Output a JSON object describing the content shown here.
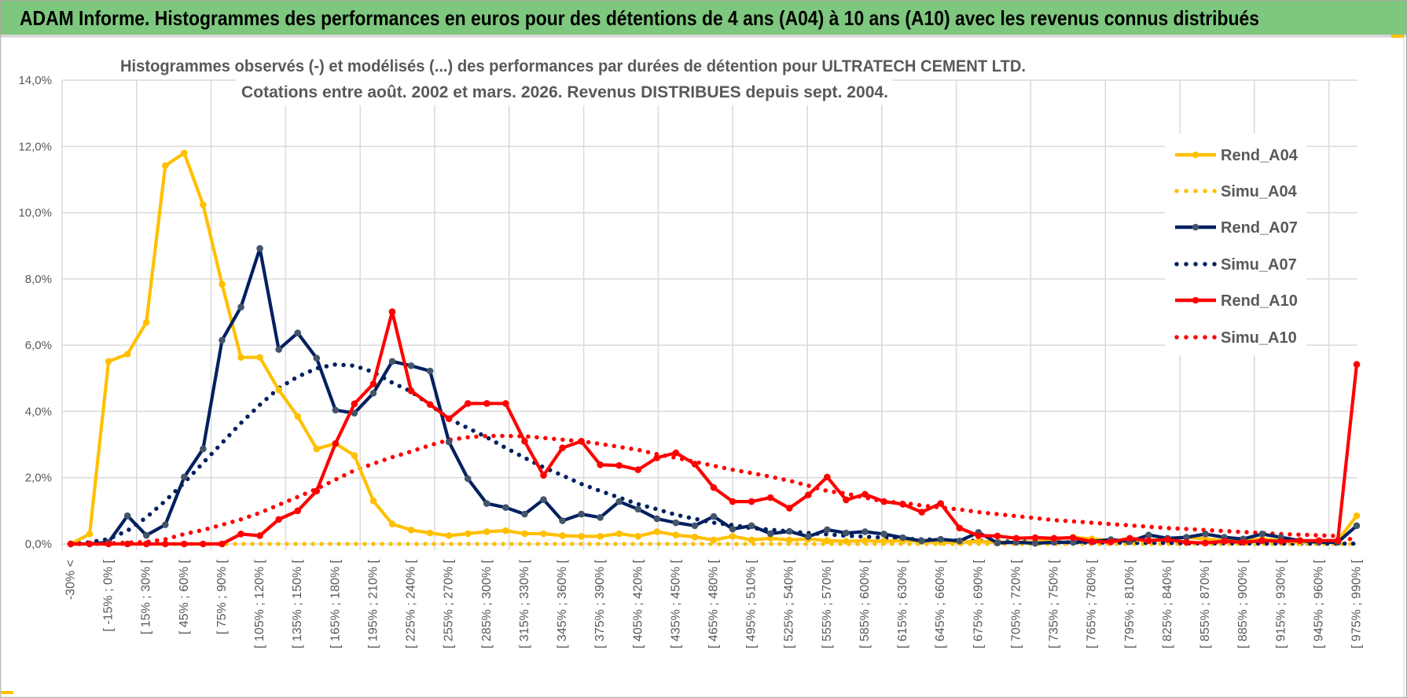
{
  "header": {
    "title": "ADAM Informe. Histogrammes des performances en euros pour des détentions de 4 ans (A04) à 10 ans (A10) avec les revenus connus distribués",
    "bar_color": "#7ec77e"
  },
  "chart_data": {
    "type": "line",
    "title_line1": "Histogrammes observés (-) et modélisés (...) des performances par durées de détention pour ULTRATECH CEMENT LTD.",
    "title_line2": "Cotations entre août. 2002 et mars. 2026. Revenus DISTRIBUES depuis sept. 2004.",
    "xlabel": "",
    "ylabel": "",
    "ylim": [
      0,
      14
    ],
    "y_ticks": [
      "0,0%",
      "2,0%",
      "4,0%",
      "6,0%",
      "8,0%",
      "10,0%",
      "12,0%",
      "14,0%"
    ],
    "grid": true,
    "legend_position": "right",
    "x_labels": [
      "-30% <",
      "[ -15% ; 0% [",
      "[ 15% ; 30% [",
      "[ 45% ; 60% [",
      "[ 75% ; 90% [",
      "[ 105% ; 120% [",
      "[ 135% ; 150% [",
      "[ 165% ; 180% [",
      "[ 195% ; 210% [",
      "[ 225% ; 240% [",
      "[ 255% ; 270% [",
      "[ 285% ; 300% [",
      "[ 315% ; 330% [",
      "[ 345% ; 360% [",
      "[ 375% ; 390% [",
      "[ 405% ; 420% [",
      "[ 435% ; 450% [",
      "[ 465% ; 480% [",
      "[ 495% ; 510% [",
      "[ 525% ; 540% [",
      "[ 555% ; 570% [",
      "[ 585% ; 600% [",
      "[ 615% ; 630% [",
      "[ 645% ; 660% [",
      "[ 675% ; 690% [",
      "[ 705% ; 720% [",
      "[ 735% ; 750% [",
      "[ 765% ; 780% [",
      "[ 795% ; 810% [",
      "[ 825% ; 840% [",
      "[ 855% ; 870% [",
      "[ 885% ; 900% [",
      "[ 915% ; 930% [",
      "[ 945% ; 960% [",
      "[ 975% ; 990% ["
    ],
    "category_count": 69,
    "label_every": 2,
    "series": [
      {
        "name": "Rend_A04",
        "style": "solid",
        "color": "#FFC000",
        "marker": "#FFC000",
        "values": [
          0,
          0.3,
          5.51,
          5.73,
          6.69,
          11.42,
          11.8,
          10.24,
          7.84,
          5.63,
          5.63,
          4.65,
          3.85,
          2.87,
          3.03,
          2.67,
          1.3,
          0.6,
          0.42,
          0.33,
          0.25,
          0.31,
          0.37,
          0.4,
          0.31,
          0.31,
          0.25,
          0.23,
          0.23,
          0.31,
          0.23,
          0.37,
          0.27,
          0.21,
          0.12,
          0.23,
          0.12,
          0.17,
          0.12,
          0.15,
          0.1,
          0.08,
          0.1,
          0.08,
          0.1,
          0.08,
          0.05,
          0.05,
          0.08,
          0.05,
          0.05,
          0.05,
          0.15,
          0.2,
          0.15,
          0.1,
          0.12,
          0.1,
          0.15,
          0.2,
          0.15,
          0.1,
          0.1,
          0.15,
          0.1,
          0.05,
          0.1,
          0.1,
          0.85
        ]
      },
      {
        "name": "Simu_A04",
        "style": "dotted",
        "color": "#FFC000",
        "values": [
          0,
          0,
          0,
          0,
          0,
          0,
          0,
          0,
          0,
          0,
          0,
          0,
          0,
          0,
          0,
          0,
          0,
          0,
          0,
          0,
          0,
          0,
          0,
          0,
          0,
          0,
          0,
          0,
          0,
          0,
          0,
          0,
          0,
          0,
          0,
          0,
          0,
          0,
          0,
          0,
          0,
          0,
          0,
          0,
          0,
          0,
          0,
          0,
          0,
          0,
          0,
          0,
          0,
          0,
          0,
          0,
          0,
          0,
          0,
          0,
          0,
          0,
          0,
          0,
          0,
          0,
          0,
          0,
          0
        ]
      },
      {
        "name": "Rend_A07",
        "style": "solid",
        "color": "#002060",
        "marker": "#44546A",
        "values": [
          0,
          0,
          0.05,
          0.85,
          0.26,
          0.58,
          2.02,
          2.87,
          6.15,
          7.15,
          8.92,
          5.87,
          6.37,
          5.61,
          4.04,
          3.95,
          4.55,
          5.51,
          5.38,
          5.22,
          3.08,
          1.97,
          1.22,
          1.1,
          0.9,
          1.34,
          0.7,
          0.9,
          0.8,
          1.28,
          1.05,
          0.76,
          0.64,
          0.55,
          0.83,
          0.45,
          0.55,
          0.31,
          0.38,
          0.22,
          0.43,
          0.33,
          0.37,
          0.3,
          0.19,
          0.09,
          0.14,
          0.09,
          0.35,
          0.03,
          0.05,
          0.02,
          0.05,
          0.05,
          0.07,
          0.13,
          0.07,
          0.27,
          0.17,
          0.2,
          0.3,
          0.2,
          0.15,
          0.3,
          0.2,
          0.1,
          0.05,
          0.05,
          0.55
        ]
      },
      {
        "name": "Simu_A07",
        "style": "dotted",
        "color": "#002060",
        "values": [
          0,
          0.05,
          0.15,
          0.4,
          0.8,
          1.3,
          1.85,
          2.45,
          3.05,
          3.65,
          4.2,
          4.7,
          5.05,
          5.3,
          5.42,
          5.38,
          5.19,
          4.87,
          4.6,
          4.2,
          3.78,
          3.5,
          3.22,
          2.9,
          2.6,
          2.31,
          2.07,
          1.81,
          1.6,
          1.4,
          1.2,
          1.05,
          0.88,
          0.76,
          0.64,
          0.57,
          0.48,
          0.43,
          0.38,
          0.33,
          0.29,
          0.25,
          0.22,
          0.19,
          0.16,
          0.14,
          0.12,
          0.1,
          0.09,
          0.08,
          0.07,
          0.06,
          0.05,
          0.05,
          0.04,
          0.04,
          0.03,
          0.03,
          0.03,
          0.02,
          0.02,
          0.02,
          0.02,
          0.01,
          0.01,
          0.01,
          0.01,
          0.01,
          0.01
        ]
      },
      {
        "name": "Rend_A10",
        "style": "solid",
        "color": "#FF0000",
        "marker": "#FF0000",
        "values": [
          0,
          0,
          0,
          0,
          0,
          0,
          0,
          0,
          0,
          0.3,
          0.25,
          0.74,
          1.0,
          1.6,
          3.03,
          4.23,
          4.83,
          7.01,
          4.62,
          4.21,
          3.78,
          4.24,
          4.24,
          4.24,
          3.1,
          2.07,
          2.9,
          3.1,
          2.39,
          2.37,
          2.24,
          2.6,
          2.75,
          2.41,
          1.7,
          1.28,
          1.28,
          1.4,
          1.08,
          1.48,
          2.02,
          1.33,
          1.5,
          1.28,
          1.2,
          0.96,
          1.22,
          0.48,
          0.25,
          0.24,
          0.17,
          0.19,
          0.17,
          0.19,
          0.07,
          0.06,
          0.17,
          0.1,
          0.13,
          0.05,
          0.03,
          0.08,
          0.05,
          0.1,
          0.08,
          0.1,
          0.1,
          0.1,
          5.42
        ]
      },
      {
        "name": "Simu_A10",
        "style": "dotted",
        "color": "#FF0000",
        "values": [
          0,
          0,
          0.02,
          0.04,
          0.06,
          0.14,
          0.3,
          0.42,
          0.58,
          0.74,
          0.94,
          1.18,
          1.42,
          1.66,
          1.94,
          2.22,
          2.42,
          2.62,
          2.79,
          2.98,
          3.14,
          3.22,
          3.26,
          3.26,
          3.25,
          3.2,
          3.15,
          3.1,
          3.02,
          2.93,
          2.84,
          2.71,
          2.6,
          2.48,
          2.36,
          2.24,
          2.14,
          2.03,
          1.91,
          1.76,
          1.6,
          1.52,
          1.4,
          1.28,
          1.24,
          1.16,
          1.1,
          1.04,
          0.96,
          0.9,
          0.84,
          0.78,
          0.72,
          0.68,
          0.64,
          0.6,
          0.56,
          0.52,
          0.48,
          0.45,
          0.42,
          0.39,
          0.36,
          0.33,
          0.3,
          0.28,
          0.26,
          0.24,
          0.1
        ]
      }
    ]
  }
}
